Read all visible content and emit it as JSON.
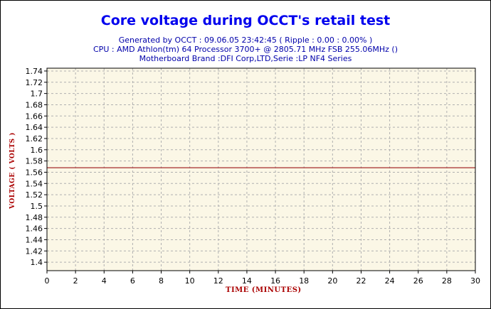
{
  "chart_data": {
    "type": "line",
    "title": "Core voltage during OCCT's retail test",
    "subtitle_lines": [
      "Generated by OCCT : 09.06.05 23:42:45 ( Ripple : 0.00 : 0.00% )",
      "CPU : AMD Athlon(tm) 64 Processor 3700+ @ 2805.71 MHz FSB 255.06MHz ()",
      "Motherboard Brand :DFI Corp,LTD,Serie :LP NF4 Series"
    ],
    "xlabel": "TIME (MINUTES)",
    "ylabel": "VOLTAGE ( VOLTS )",
    "xlim": [
      0,
      30
    ],
    "ylim": [
      1.385,
      1.745
    ],
    "xticks": [
      "0",
      "2",
      "4",
      "6",
      "8",
      "10",
      "12",
      "14",
      "16",
      "18",
      "20",
      "22",
      "24",
      "26",
      "28",
      "30"
    ],
    "yticks": [
      "1.4",
      "1.42",
      "1.44",
      "1.46",
      "1.48",
      "1.5",
      "1.52",
      "1.54",
      "1.56",
      "1.58",
      "1.6",
      "1.62",
      "1.64",
      "1.66",
      "1.68",
      "1.7",
      "1.72",
      "1.74"
    ],
    "grid": true,
    "series": [
      {
        "x": [
          0,
          30
        ],
        "values": [
          1.568,
          1.568
        ]
      }
    ],
    "colors": {
      "plot_background": "#fbf7e6",
      "grid": "#b0b0b0",
      "series": "#a52a2a",
      "title": "#0000ee",
      "subtitle": "#0000aa",
      "axis_label": "#aa0000"
    }
  }
}
